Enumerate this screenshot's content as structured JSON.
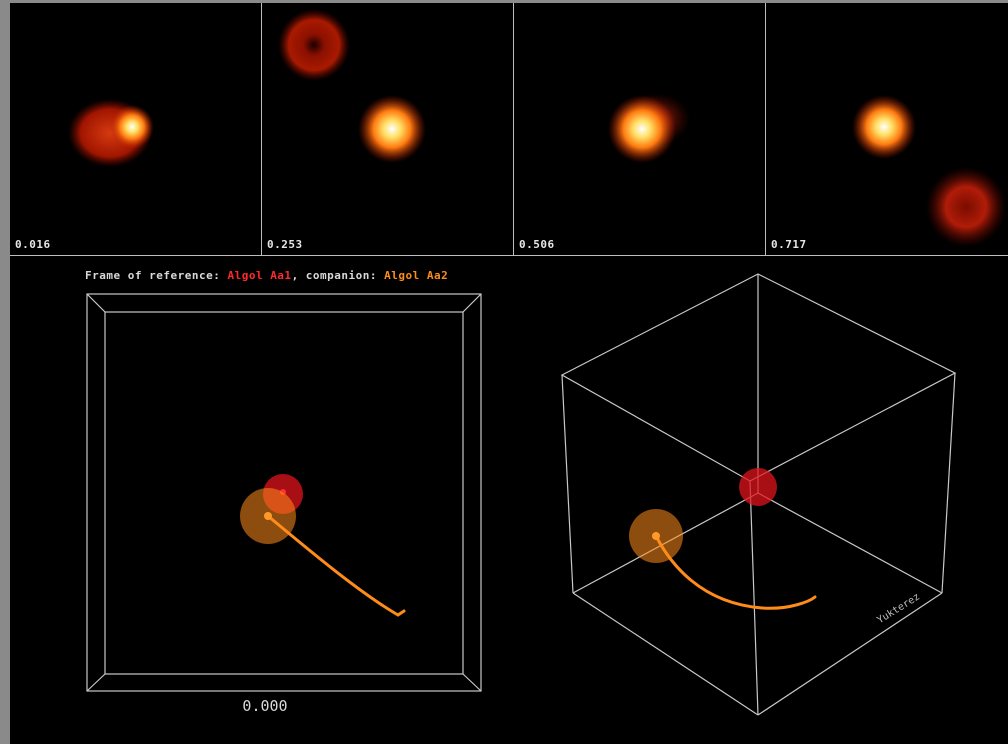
{
  "phase_panels": [
    {
      "phase_label": "0.016"
    },
    {
      "phase_label": "0.253"
    },
    {
      "phase_label": "0.506"
    },
    {
      "phase_label": "0.717"
    }
  ],
  "caption": {
    "prefix": "Frame of reference: ",
    "reference_star": "Algol Aa1",
    "middle": ", companion: ",
    "companion_star": "Algol Aa2"
  },
  "orbit_view": {
    "phase_readout": "0.000"
  },
  "cube_view": {
    "credit": "Yukterez"
  },
  "colors": {
    "primary_star": "#e0141c",
    "companion_star": "#ff8c1a",
    "wireframe": "#c8c8c8",
    "background": "#000000"
  }
}
